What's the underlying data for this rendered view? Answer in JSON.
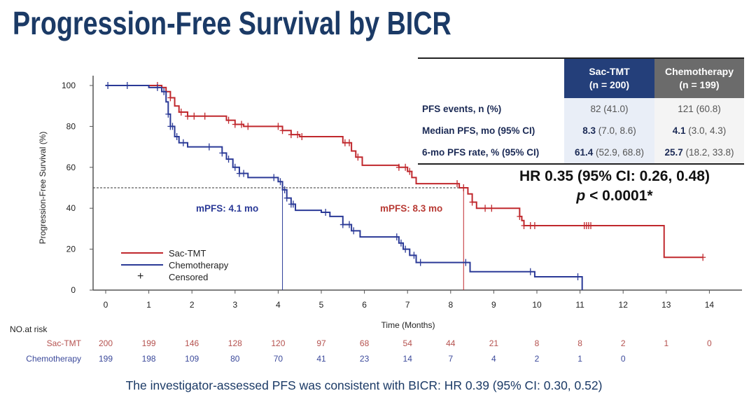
{
  "title": "Progression-Free Survival by BICR",
  "table": {
    "headers": [
      {
        "name": "Sac-TMT",
        "n": "(n = 200)",
        "color": "#243f7a"
      },
      {
        "name": "Chemotherapy",
        "n": "(n = 199)",
        "color": "#6b6b6b"
      }
    ],
    "rows": [
      {
        "label": "PFS events, n (%)",
        "c1_bold": "",
        "c1": "82 (41.0)",
        "c2_bold": "",
        "c2": "121 (60.8)"
      },
      {
        "label": "Median PFS, mo (95% CI)",
        "c1_bold": "8.3",
        "c1": " (7.0, 8.6)",
        "c2_bold": "4.1",
        "c2": " (3.0, 4.3)"
      },
      {
        "label": "6-mo PFS rate, %  (95% CI)",
        "c1_bold": "61.4",
        "c1": " (52.9, 68.8)",
        "c2_bold": "25.7",
        "c2": " (18.2, 33.8)"
      }
    ]
  },
  "hr_text": "HR 0.35 (95% CI: 0.26, 0.48)",
  "p_label": "p",
  "p_text": " < 0.0001*",
  "footnote": "The investigator-assessed PFS was consistent with BICR: HR 0.39 (95% CI: 0.30, 0.52)",
  "chart_data": {
    "type": "line",
    "subtype": "kaplan-meier step",
    "xlabel": "Time (Months)",
    "ylabel": "Progression-Free Survival (%)",
    "xlim": [
      0,
      14
    ],
    "ylim": [
      0,
      100
    ],
    "xticks": [
      "0",
      "1",
      "2",
      "3",
      "4",
      "5",
      "6",
      "7",
      "8",
      "9",
      "10",
      "11",
      "12",
      "13",
      "14"
    ],
    "yticks": [
      "0",
      "20",
      "40",
      "60",
      "80",
      "100"
    ],
    "grid": false,
    "legend_position": "bottom-left",
    "legend": [
      "Sac-TMT",
      "Chemotherapy",
      "Censored"
    ],
    "median_reference": 50,
    "series": [
      {
        "name": "Sac-TMT",
        "color": "#c0282d",
        "median": 8.3,
        "median_label": "mPFS: 8.3 mo",
        "end": 13.85,
        "steps": [
          [
            0,
            100
          ],
          [
            1.3,
            99
          ],
          [
            1.4,
            97
          ],
          [
            1.5,
            94
          ],
          [
            1.6,
            90
          ],
          [
            1.7,
            87
          ],
          [
            1.9,
            85
          ],
          [
            2.8,
            83
          ],
          [
            3.0,
            81
          ],
          [
            3.2,
            80
          ],
          [
            4.1,
            78
          ],
          [
            4.3,
            76
          ],
          [
            4.5,
            75
          ],
          [
            5.5,
            72
          ],
          [
            5.7,
            68
          ],
          [
            5.8,
            65
          ],
          [
            5.95,
            61
          ],
          [
            6.8,
            60
          ],
          [
            7.0,
            58
          ],
          [
            7.1,
            55
          ],
          [
            7.2,
            52
          ],
          [
            8.2,
            50
          ],
          [
            8.4,
            47
          ],
          [
            8.5,
            43
          ],
          [
            8.6,
            40
          ],
          [
            9.6,
            36
          ],
          [
            9.65,
            34
          ],
          [
            9.7,
            31.5
          ],
          [
            12.95,
            16
          ]
        ],
        "censored": [
          1.2,
          1.4,
          1.5,
          1.75,
          1.9,
          2.05,
          2.3,
          2.85,
          3.0,
          3.15,
          3.3,
          4.0,
          4.1,
          4.3,
          4.45,
          4.55,
          5.55,
          5.65,
          5.85,
          6.8,
          6.95,
          7.05,
          8.15,
          8.3,
          8.5,
          8.8,
          8.95,
          9.6,
          9.7,
          9.85,
          9.95,
          11.1,
          11.15,
          11.2,
          11.25,
          13.85
        ]
      },
      {
        "name": "Chemotherapy",
        "color": "#2b3a97",
        "median": 4.1,
        "median_label": "mPFS: 4.1 mo",
        "end": 11.05,
        "steps": [
          [
            0,
            100
          ],
          [
            1.0,
            99
          ],
          [
            1.3,
            97
          ],
          [
            1.4,
            92
          ],
          [
            1.45,
            86
          ],
          [
            1.5,
            80
          ],
          [
            1.6,
            75
          ],
          [
            1.7,
            72
          ],
          [
            1.9,
            70
          ],
          [
            2.7,
            67
          ],
          [
            2.8,
            64
          ],
          [
            2.95,
            60
          ],
          [
            3.1,
            57
          ],
          [
            3.3,
            55
          ],
          [
            4.0,
            53
          ],
          [
            4.1,
            49
          ],
          [
            4.2,
            45
          ],
          [
            4.3,
            42
          ],
          [
            4.4,
            39
          ],
          [
            5.0,
            38
          ],
          [
            5.2,
            36
          ],
          [
            5.5,
            32
          ],
          [
            5.7,
            29
          ],
          [
            5.9,
            26
          ],
          [
            6.8,
            23
          ],
          [
            6.9,
            20
          ],
          [
            7.05,
            17
          ],
          [
            7.2,
            13.5
          ],
          [
            8.45,
            9
          ],
          [
            9.95,
            6.5
          ],
          [
            11.05,
            0
          ]
        ],
        "censored": [
          0.05,
          0.5,
          1.2,
          1.35,
          1.45,
          1.5,
          1.55,
          1.65,
          1.8,
          2.4,
          2.7,
          2.85,
          3.0,
          3.1,
          3.2,
          3.9,
          4.05,
          4.15,
          4.2,
          4.3,
          4.35,
          5.1,
          5.5,
          5.65,
          5.75,
          6.75,
          6.85,
          6.95,
          7.15,
          7.3,
          8.35,
          9.85,
          10.95
        ]
      }
    ],
    "at_risk": {
      "title": "NO.at risk",
      "rows": [
        {
          "name": "Sac-TMT",
          "color": "#b5524f",
          "values": [
            "200",
            "199",
            "146",
            "128",
            "120",
            "97",
            "68",
            "54",
            "44",
            "21",
            "8",
            "8",
            "2",
            "1",
            "0"
          ]
        },
        {
          "name": "Chemotherapy",
          "color": "#3c4a9b",
          "values": [
            "199",
            "198",
            "109",
            "80",
            "70",
            "41",
            "23",
            "14",
            "7",
            "4",
            "2",
            "1",
            "0"
          ]
        }
      ]
    }
  }
}
